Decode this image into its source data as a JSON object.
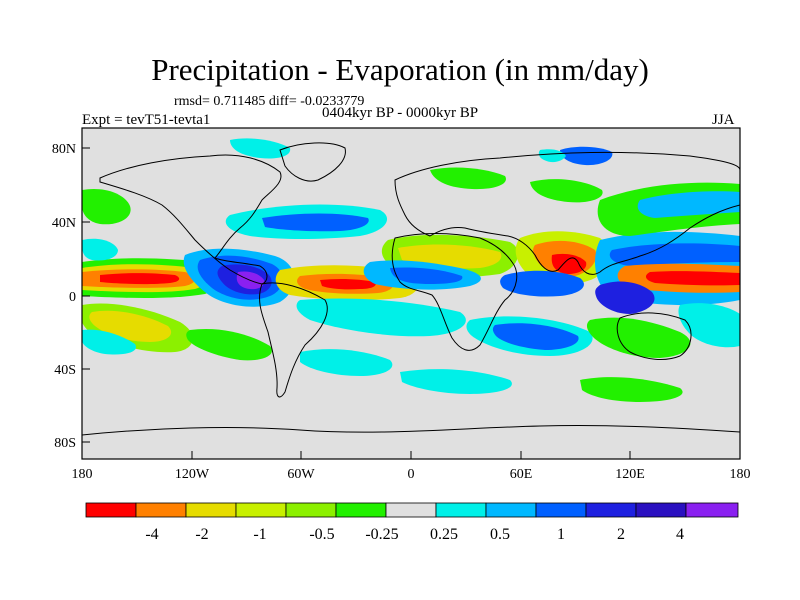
{
  "title": "Precipitation - Evaporation (in mm/day)",
  "stats": "rmsd= 0.711485 diff= -0.0233779",
  "experiment": "Expt = tevT51-tevta1",
  "period": "0404kyr BP - 0000kyr BP",
  "season": "JJA",
  "axes": {
    "lat_ticks": [
      "80N",
      "40N",
      "0",
      "40S",
      "80S"
    ],
    "lon_ticks": [
      "180",
      "120W",
      "60W",
      "0",
      "60E",
      "120E",
      "180"
    ]
  },
  "legend": {
    "colors": [
      "#ff0000",
      "#ff8000",
      "#e6dc00",
      "#c8f000",
      "#8cf000",
      "#22f000",
      "#e0e0e0",
      "#00f0e8",
      "#00b8ff",
      "#0060ff",
      "#1e20e0",
      "#2a10c0",
      "#8a20f0"
    ],
    "labels": [
      "-4",
      "-2",
      "-1",
      "-0.5",
      "-0.25",
      "0.25",
      "0.5",
      "1",
      "2",
      "4"
    ]
  },
  "palette": {
    "background": "#e0e0e0",
    "red": "#ff0000",
    "orange": "#ff8000",
    "yellow": "#e6dc00",
    "yellow_green": "#c8f000",
    "light_green": "#8cf000",
    "green": "#22f000",
    "cyan": "#00f0e8",
    "light_blue": "#00b8ff",
    "blue": "#0060ff",
    "dark_blue": "#1e20e0",
    "navy": "#2a10c0",
    "purple": "#8a20f0"
  }
}
